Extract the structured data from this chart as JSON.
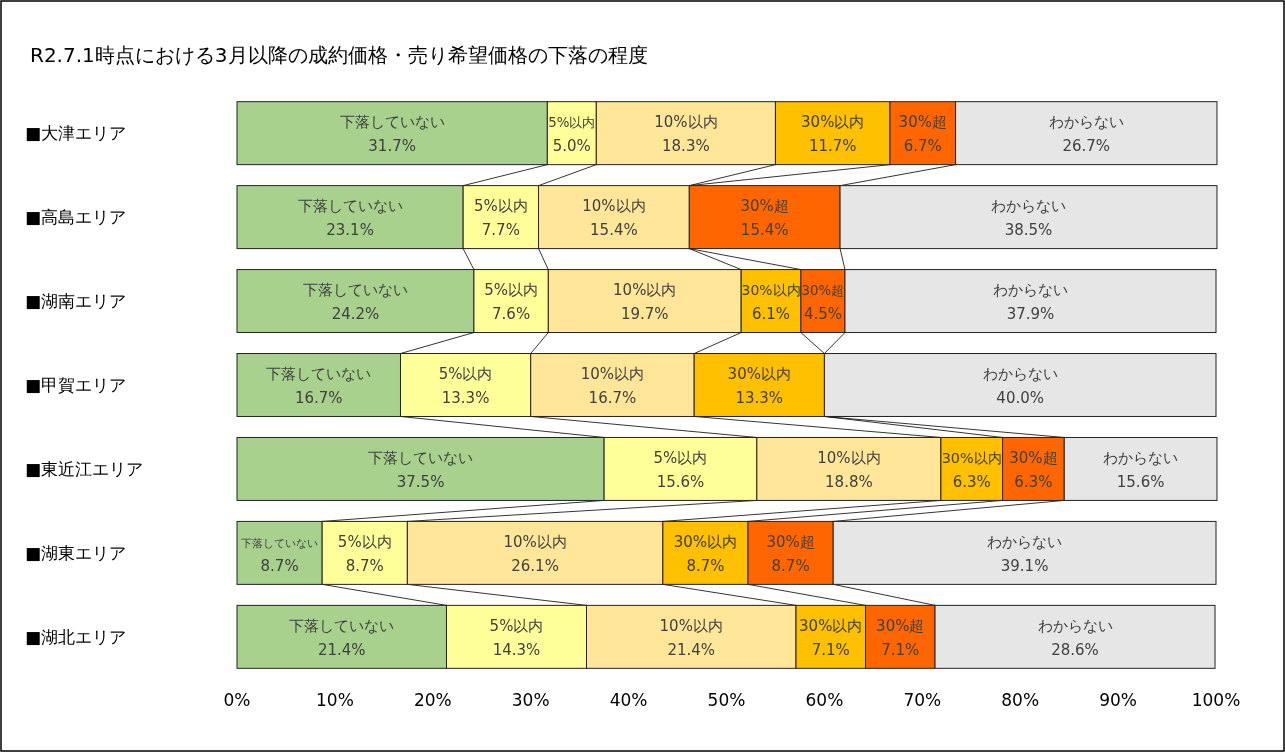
{
  "chart_data": {
    "type": "bar",
    "orientation": "horizontal",
    "stacked": true,
    "title": "R2.7.1時点における3月以降の成約価格・売り希望価格の下落の程度",
    "categories": [
      "■大津エリア",
      "■高島エリア",
      "■湖南エリア",
      "■甲賀エリア",
      "■東近江エリア",
      "■湖東エリア",
      "■湖北エリア"
    ],
    "xlim": [
      0,
      100
    ],
    "xticks": [
      {
        "value": 0,
        "label": "0%"
      },
      {
        "value": 10,
        "label": "10%"
      },
      {
        "value": 20,
        "label": "20%"
      },
      {
        "value": 30,
        "label": "30%"
      },
      {
        "value": 40,
        "label": "40%"
      },
      {
        "value": 50,
        "label": "50%"
      },
      {
        "value": 60,
        "label": "60%"
      },
      {
        "value": 70,
        "label": "70%"
      },
      {
        "value": 80,
        "label": "80%"
      },
      {
        "value": 90,
        "label": "90%"
      },
      {
        "value": 100,
        "label": "100%"
      }
    ],
    "series": [
      {
        "name": "下落していない",
        "color": "#a9d18e",
        "values": [
          31.7,
          23.1,
          24.2,
          16.7,
          37.5,
          8.7,
          21.4
        ],
        "value_labels": [
          "31.7%",
          "23.1%",
          "24.2%",
          "16.7%",
          "37.5%",
          "8.7%",
          "21.4%"
        ]
      },
      {
        "name": "5%以内",
        "color": "#ffff99",
        "values": [
          5.0,
          7.7,
          7.6,
          13.3,
          15.6,
          8.7,
          14.3
        ],
        "value_labels": [
          "5.0%",
          "7.7%",
          "7.6%",
          "13.3%",
          "15.6%",
          "8.7%",
          "14.3%"
        ]
      },
      {
        "name": "10%以内",
        "color": "#ffe699",
        "values": [
          18.3,
          15.4,
          19.7,
          16.7,
          18.8,
          26.1,
          21.4
        ],
        "value_labels": [
          "18.3%",
          "15.4%",
          "19.7%",
          "16.7%",
          "18.8%",
          "26.1%",
          "21.4%"
        ]
      },
      {
        "name": "30%以内",
        "color": "#ffc000",
        "values": [
          11.7,
          null,
          6.1,
          13.3,
          6.3,
          8.7,
          7.1
        ],
        "value_labels": [
          "11.7%",
          null,
          "6.1%",
          "13.3%",
          "6.3%",
          "8.7%",
          "7.1%"
        ]
      },
      {
        "name": "30%超",
        "color": "#ff6600",
        "values": [
          6.7,
          15.4,
          4.5,
          null,
          6.3,
          8.7,
          7.1
        ],
        "value_labels": [
          "6.7%",
          "15.4%",
          "4.5%",
          null,
          "6.3%",
          "8.7%",
          "7.1%"
        ]
      },
      {
        "name": "わからない",
        "color": "#e7e6e6",
        "values": [
          26.7,
          38.5,
          37.9,
          40.0,
          15.6,
          39.1,
          28.6
        ],
        "value_labels": [
          "26.7%",
          "38.5%",
          "37.9%",
          "40.0%",
          "15.6%",
          "39.1%",
          "28.6%"
        ]
      }
    ]
  }
}
